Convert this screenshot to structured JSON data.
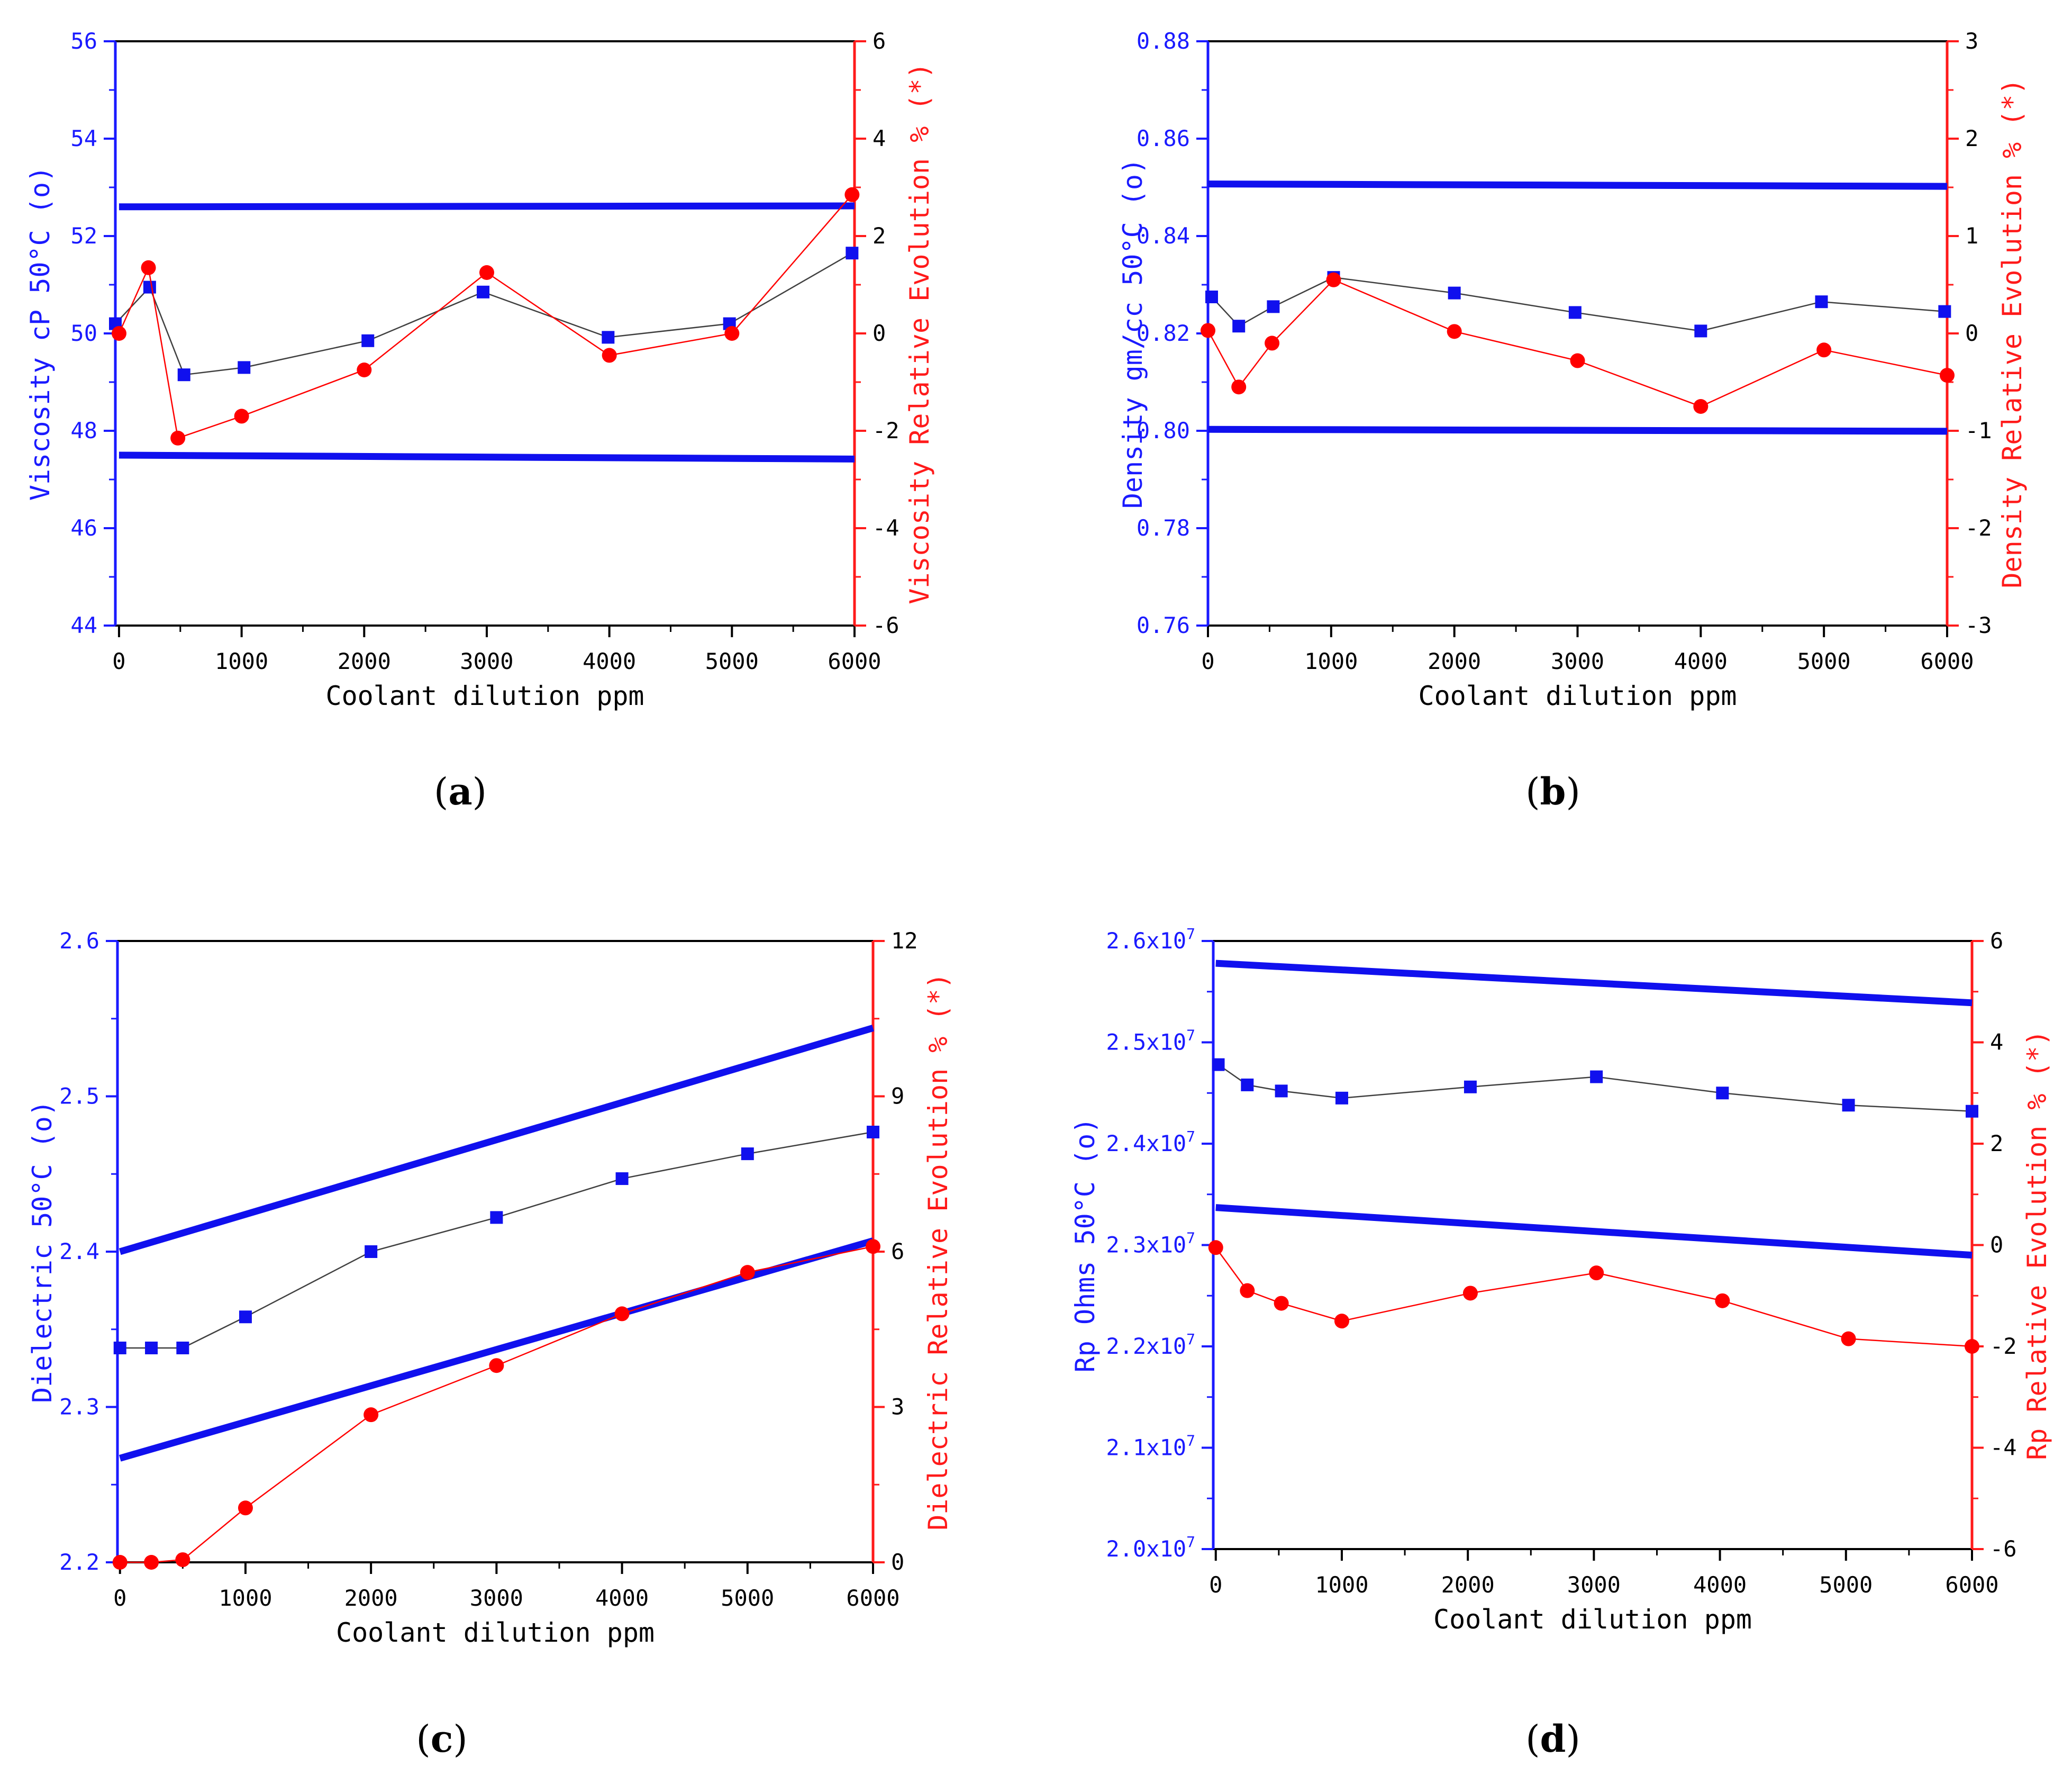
{
  "colors": {
    "left_axis": "#1a1aff",
    "right_axis": "#ff1a1a",
    "limit_line": "#1010ee",
    "square_marker": "#1010ee",
    "circle_marker": "#ff0000",
    "connector": "#404040",
    "frame": "#000000"
  },
  "chart_data": [
    {
      "id": "a",
      "caption": "a",
      "type": "line",
      "xlabel": "Coolant dilution ppm",
      "ylabel_left": "Viscosity cP 50°C (o)",
      "ylabel_right": "Viscosity Relative Evolution % (*)",
      "xlim": [
        -30,
        6000
      ],
      "ylim_left": [
        44,
        56
      ],
      "ylim_right": [
        -6,
        6
      ],
      "x_ticks": [
        0,
        1000,
        2000,
        3000,
        4000,
        5000,
        6000
      ],
      "x_tick_labels": [
        "0",
        "1000",
        "2000",
        "3000",
        "4000",
        "5000",
        "6000"
      ],
      "y_left_ticks": [
        44,
        46,
        48,
        50,
        52,
        54,
        56
      ],
      "y_left_tick_labels": [
        "44",
        "46",
        "48",
        "50",
        "52",
        "54",
        "56"
      ],
      "y_right_ticks": [
        -6,
        -4,
        -2,
        0,
        2,
        4,
        6
      ],
      "y_right_tick_labels": [
        "-6",
        "-4",
        "-2",
        "0",
        "2",
        "4",
        "6"
      ],
      "limit_lines": [
        {
          "name": "upper limit",
          "x": [
            0,
            6000
          ],
          "y": [
            52.6,
            52.62
          ]
        },
        {
          "name": "lower limit",
          "x": [
            0,
            6000
          ],
          "y": [
            47.5,
            47.42
          ]
        }
      ],
      "series": [
        {
          "name": "Viscosity cP 50°C (o)",
          "axis": "left",
          "marker": "square",
          "x": [
            -30,
            250,
            530,
            1020,
            2030,
            2970,
            3990,
            4980,
            5980
          ],
          "y": [
            50.2,
            50.95,
            49.15,
            49.3,
            49.85,
            50.85,
            49.92,
            50.2,
            51.65
          ]
        },
        {
          "name": "Viscosity Relative Evolution % (*)",
          "axis": "right",
          "marker": "circle",
          "x": [
            0,
            240,
            480,
            1000,
            2000,
            3000,
            4000,
            5000,
            5980
          ],
          "y": [
            0.0,
            1.35,
            -2.15,
            -1.7,
            -0.75,
            1.25,
            -0.45,
            0.0,
            2.85
          ]
        }
      ]
    },
    {
      "id": "b",
      "caption": "b",
      "type": "line",
      "xlabel": "Coolant dilution ppm",
      "ylabel_left": "Density gm/cc 50°C (o)",
      "ylabel_right": "Density Relative Evolution % (*)",
      "xlim": [
        0,
        6000
      ],
      "ylim_left": [
        0.76,
        0.88
      ],
      "ylim_right": [
        -3,
        3
      ],
      "x_ticks": [
        0,
        1000,
        2000,
        3000,
        4000,
        5000,
        6000
      ],
      "x_tick_labels": [
        "0",
        "1000",
        "2000",
        "3000",
        "4000",
        "5000",
        "6000"
      ],
      "y_left_ticks": [
        0.76,
        0.78,
        0.8,
        0.82,
        0.84,
        0.86,
        0.88
      ],
      "y_left_tick_labels": [
        "0.76",
        "0.78",
        "0.80",
        "0.82",
        "0.84",
        "0.86",
        "0.88"
      ],
      "y_right_ticks": [
        -3,
        -2,
        -1,
        0,
        1,
        2,
        3
      ],
      "y_right_tick_labels": [
        "-3",
        "-2",
        "-1",
        "0",
        "1",
        "2",
        "3"
      ],
      "limit_lines": [
        {
          "name": "upper limit",
          "x": [
            0,
            6000
          ],
          "y": [
            0.8507,
            0.8502
          ]
        },
        {
          "name": "lower limit",
          "x": [
            0,
            6000
          ],
          "y": [
            0.8003,
            0.7999
          ]
        }
      ],
      "series": [
        {
          "name": "Density gm/cc 50°C (o)",
          "axis": "left",
          "marker": "square",
          "x": [
            30,
            250,
            530,
            1020,
            2000,
            2980,
            4000,
            4980,
            5980
          ],
          "y": [
            0.8275,
            0.8215,
            0.8255,
            0.8315,
            0.8283,
            0.8243,
            0.8205,
            0.8265,
            0.8245
          ]
        },
        {
          "name": "Density Relative Evolution % (*)",
          "axis": "right",
          "marker": "circle",
          "x": [
            0,
            250,
            520,
            1020,
            2000,
            3000,
            4000,
            5000,
            6000
          ],
          "y": [
            0.03,
            -0.55,
            -0.1,
            0.55,
            0.02,
            -0.28,
            -0.75,
            -0.17,
            -0.43
          ]
        }
      ]
    },
    {
      "id": "c",
      "caption": "c",
      "type": "line",
      "xlabel": "Coolant dilution ppm",
      "ylabel_left": "Dielectric 50°C (o)",
      "ylabel_right": "Dielectric Relative Evolution % (*)",
      "xlim": [
        -20,
        6000
      ],
      "ylim_left": [
        2.2,
        2.6
      ],
      "ylim_right": [
        0,
        12
      ],
      "x_ticks": [
        0,
        1000,
        2000,
        3000,
        4000,
        5000,
        6000
      ],
      "x_tick_labels": [
        "0",
        "1000",
        "2000",
        "3000",
        "4000",
        "5000",
        "6000"
      ],
      "y_left_ticks": [
        2.2,
        2.3,
        2.4,
        2.5,
        2.6
      ],
      "y_left_tick_labels": [
        "2.2",
        "2.3",
        "2.4",
        "2.5",
        "2.6"
      ],
      "y_right_ticks": [
        0,
        3,
        6,
        9,
        12
      ],
      "y_right_tick_labels": [
        "0",
        "3",
        "6",
        "9",
        "12"
      ],
      "limit_lines": [
        {
          "name": "upper limit",
          "x": [
            0,
            6000
          ],
          "y": [
            2.4,
            2.544
          ]
        },
        {
          "name": "lower limit",
          "x": [
            0,
            6000
          ],
          "y": [
            2.267,
            2.407
          ]
        }
      ],
      "series": [
        {
          "name": "Dielectric 50°C (o)",
          "axis": "left",
          "marker": "square",
          "x": [
            0,
            250,
            500,
            1000,
            2000,
            3000,
            4000,
            5000,
            6000
          ],
          "y": [
            2.338,
            2.338,
            2.338,
            2.358,
            2.4,
            2.422,
            2.447,
            2.463,
            2.477
          ]
        },
        {
          "name": "Dielectric Relative Evolution % (*)",
          "axis": "right",
          "marker": "circle",
          "x": [
            0,
            250,
            500,
            1000,
            2000,
            3000,
            4000,
            5000,
            6000
          ],
          "y": [
            0.0,
            0.0,
            0.05,
            1.05,
            2.85,
            3.8,
            4.8,
            5.6,
            6.1
          ]
        }
      ]
    },
    {
      "id": "d",
      "caption": "d",
      "type": "line",
      "xlabel": "Coolant dilution ppm",
      "ylabel_left": "Rp Ohms 50°C (o)",
      "ylabel_right": "Rp Relative Evolution % (*)",
      "xlim": [
        -20,
        6000
      ],
      "ylim_left": [
        20000000.0,
        26000000.0
      ],
      "ylim_right": [
        -6,
        6
      ],
      "x_ticks": [
        0,
        1000,
        2000,
        3000,
        4000,
        5000,
        6000
      ],
      "x_tick_labels": [
        "0",
        "1000",
        "2000",
        "3000",
        "4000",
        "5000",
        "6000"
      ],
      "y_left_ticks": [
        20000000.0,
        21000000.0,
        22000000.0,
        23000000.0,
        24000000.0,
        25000000.0,
        26000000.0
      ],
      "y_left_tick_labels": [
        {
          "mantissa": "2.0x10",
          "exp": "7"
        },
        {
          "mantissa": "2.1x10",
          "exp": "7"
        },
        {
          "mantissa": "2.2x10",
          "exp": "7"
        },
        {
          "mantissa": "2.3x10",
          "exp": "7"
        },
        {
          "mantissa": "2.4x10",
          "exp": "7"
        },
        {
          "mantissa": "2.5x10",
          "exp": "7"
        },
        {
          "mantissa": "2.6x10",
          "exp": "7"
        }
      ],
      "y_right_ticks": [
        -6,
        -4,
        -2,
        0,
        2,
        4,
        6
      ],
      "y_right_tick_labels": [
        "-6",
        "-4",
        "-2",
        "0",
        "2",
        "4",
        "6"
      ],
      "limit_lines": [
        {
          "name": "upper limit",
          "x": [
            0,
            6000
          ],
          "y": [
            25780000.0,
            25390000.0
          ]
        },
        {
          "name": "lower limit",
          "x": [
            0,
            6000
          ],
          "y": [
            23370000.0,
            22900000.0
          ]
        }
      ],
      "series": [
        {
          "name": "Rp Ohms 50°C (o)",
          "axis": "left",
          "marker": "square",
          "x": [
            20,
            250,
            520,
            1000,
            2020,
            3020,
            4020,
            5020,
            6000
          ],
          "y": [
            24780000.0,
            24580000.0,
            24520000.0,
            24450000.0,
            24560000.0,
            24660000.0,
            24500000.0,
            24380000.0,
            24320000.0
          ]
        },
        {
          "name": "Rp Relative Evolution % (*)",
          "axis": "right",
          "marker": "circle",
          "x": [
            0,
            250,
            520,
            1000,
            2020,
            3020,
            4020,
            5020,
            6000
          ],
          "y": [
            -0.05,
            -0.9,
            -1.15,
            -1.5,
            -0.95,
            -0.55,
            -1.1,
            -1.85,
            -2.0
          ]
        }
      ]
    }
  ]
}
